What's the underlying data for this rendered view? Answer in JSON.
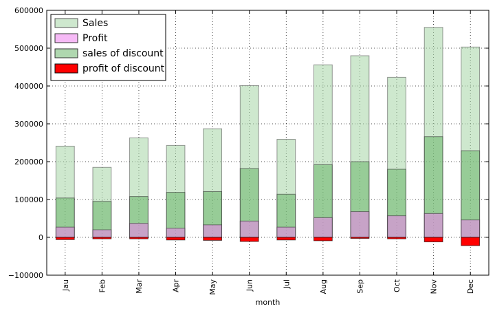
{
  "chart_data": {
    "type": "bar",
    "title": "",
    "xlabel": "month",
    "ylabel": "",
    "categories": [
      "Jau",
      "Feb",
      "Mar",
      "Apr",
      "May",
      "Jun",
      "Jul",
      "Aug",
      "Sep",
      "Oct",
      "Nov",
      "Dec"
    ],
    "ylim": [
      -100000,
      600000
    ],
    "yticks": [
      "−100000",
      "0",
      "100000",
      "200000",
      "300000",
      "400000",
      "500000",
      "600000"
    ],
    "grid": true,
    "legend_position": "upper left",
    "overlay": true,
    "series": [
      {
        "name": "Sales",
        "color": "#a6d5a6",
        "opacity": 0.55,
        "edge": "#555555",
        "values": [
          241000,
          185000,
          263000,
          243000,
          287000,
          401000,
          259000,
          456000,
          480000,
          423000,
          555000,
          503000
        ]
      },
      {
        "name": "sales of discount",
        "color": "#5fb05f",
        "opacity": 0.5,
        "edge": "#333333",
        "values": [
          104000,
          95000,
          108000,
          119000,
          121000,
          182000,
          114000,
          192000,
          200000,
          180000,
          266000,
          229000
        ]
      },
      {
        "name": "Profit",
        "color": "#ee82ee",
        "opacity": 0.55,
        "edge": "#333333",
        "values": [
          27000,
          20000,
          37000,
          24000,
          33000,
          43000,
          27000,
          52000,
          68000,
          57000,
          63000,
          46000
        ]
      },
      {
        "name": "profit of discount",
        "color": "#ff0000",
        "opacity": 1,
        "edge": "#000000",
        "values": [
          -6000,
          -4000,
          -4000,
          -7000,
          -8000,
          -11000,
          -7000,
          -9000,
          -3000,
          -4000,
          -12000,
          -22000
        ]
      }
    ],
    "legend_order": [
      "Sales",
      "Profit",
      "sales of discount",
      "profit of discount"
    ]
  }
}
